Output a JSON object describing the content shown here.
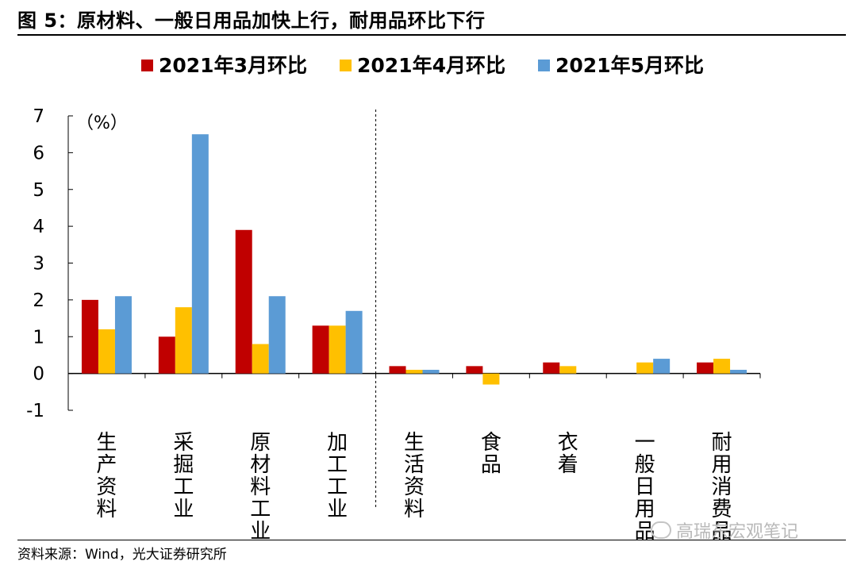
{
  "title": "图 5：原材料、一般日用品加快上行，耐用品环比下行",
  "source": "资料来源：Wind，光大证券研究所",
  "watermark": "高瑞东宏观笔记",
  "colors": {
    "march": "#C00000",
    "april": "#FFC000",
    "may": "#5B9BD5"
  },
  "chart_data": {
    "type": "bar",
    "unit_label": "（%）",
    "ylim": [
      -1,
      7
    ],
    "yticks": [
      -1,
      0,
      1,
      2,
      3,
      4,
      5,
      6,
      7
    ],
    "legend_position": "top",
    "categories": [
      "生产资料",
      "采掘工业",
      "原材料工业",
      "加工工业",
      "生活资料",
      "食品",
      "衣着",
      "一般日用品",
      "耐用消费品"
    ],
    "separator_after_index": 3,
    "series": [
      {
        "name": "2021年3月环比",
        "color": "#C00000",
        "values": [
          2.0,
          1.0,
          3.9,
          1.3,
          0.2,
          0.2,
          0.3,
          0.0,
          0.3
        ]
      },
      {
        "name": "2021年4月环比",
        "color": "#FFC000",
        "values": [
          1.2,
          1.8,
          0.8,
          1.3,
          0.1,
          -0.3,
          0.2,
          0.3,
          0.4
        ]
      },
      {
        "name": "2021年5月环比",
        "color": "#5B9BD5",
        "values": [
          2.1,
          6.5,
          2.1,
          1.7,
          0.1,
          0.0,
          0.0,
          0.4,
          0.1
        ]
      }
    ]
  }
}
